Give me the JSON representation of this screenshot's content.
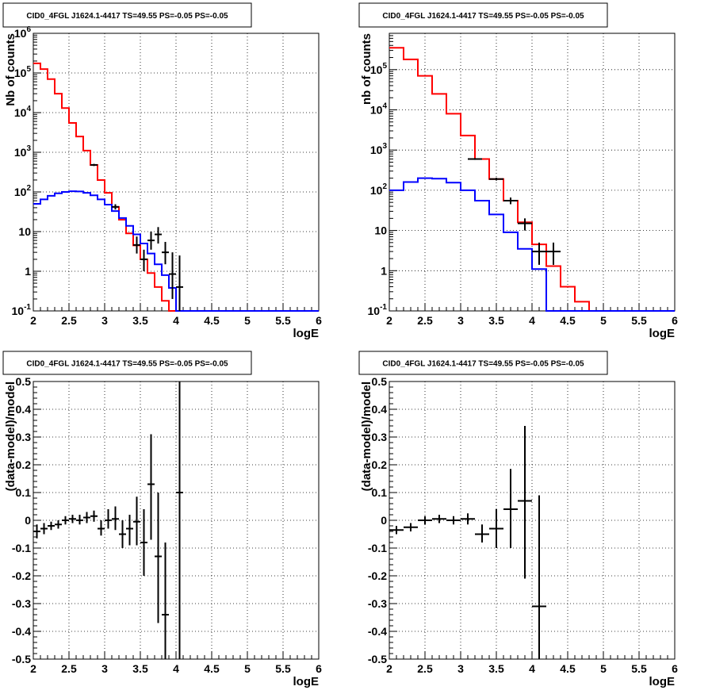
{
  "chart_data": [
    {
      "type": "histogram",
      "title": "CID0_4FGL J1624.1-4417 TS=49.55 PS=-0.05 PS=-0.05",
      "xlabel": "logE",
      "ylabel": "Nb of counts",
      "xlim": [
        2,
        6
      ],
      "ylim": [
        0.1,
        1000000
      ],
      "yscale": "log",
      "grid": true,
      "x_ticks": [
        "2",
        "2.5",
        "3",
        "3.5",
        "4",
        "4.5",
        "5",
        "5.5",
        "6"
      ],
      "y_ticks": [
        "10^-1",
        "1",
        "10",
        "10^2",
        "10^3",
        "10^4",
        "10^5",
        "10^6"
      ],
      "bin_edges": [
        2.0,
        2.1,
        2.2,
        2.3,
        2.4,
        2.5,
        2.6,
        2.7,
        2.8,
        2.9,
        3.0,
        3.1,
        3.2,
        3.3,
        3.4,
        3.5,
        3.6,
        3.7,
        3.8,
        3.9,
        4.0,
        4.1,
        4.2,
        4.3,
        4.4,
        4.5,
        4.6,
        4.7,
        4.8,
        4.9,
        5.0,
        5.1,
        5.2,
        5.3,
        5.4,
        5.5,
        5.6,
        5.7,
        5.8,
        5.9,
        6.0
      ],
      "series": [
        {
          "color": "#ff0000",
          "style": "step",
          "values": [
            175000,
            125000,
            70000,
            30000,
            13000,
            5500,
            2500,
            1100,
            480,
            200,
            95,
            42,
            20,
            9,
            4.5,
            2,
            0.9,
            0.4,
            0.18,
            0.1,
            0.1,
            0.1,
            0.1,
            0.1,
            0.1,
            0.1,
            0.1,
            0.1,
            0.1,
            0.1,
            0.1,
            0.1,
            0.1,
            0.1,
            0.1,
            0.1,
            0.1,
            0.1,
            0.1,
            0.1
          ]
        },
        {
          "color": "#0000ff",
          "style": "step",
          "values": [
            50,
            65,
            80,
            92,
            100,
            104,
            103,
            95,
            82,
            65,
            48,
            33,
            22,
            14,
            8.5,
            5,
            2.8,
            1.5,
            0.8,
            0.38,
            0.1,
            0.1,
            0.1,
            0.1,
            0.1,
            0.1,
            0.1,
            0.1,
            0.1,
            0.1,
            0.1,
            0.1,
            0.1,
            0.1,
            0.1,
            0.1,
            0.1,
            0.1,
            0.1,
            0.1
          ]
        },
        {
          "color": "#000000",
          "style": "errorbar",
          "points": [
            {
              "x": 2.85,
              "y": 480,
              "xerr": 0.05,
              "lo": 450,
              "hi": 510
            },
            {
              "x": 3.15,
              "y": 42,
              "xerr": 0.05,
              "lo": 36,
              "hi": 49
            },
            {
              "x": 3.45,
              "y": 4.6,
              "xerr": 0.05,
              "lo": 2.8,
              "hi": 7.5
            },
            {
              "x": 3.55,
              "y": 2.0,
              "xerr": 0.05,
              "lo": 1.0,
              "hi": 3.5
            },
            {
              "x": 3.65,
              "y": 6.0,
              "xerr": 0.05,
              "lo": 3.5,
              "hi": 10
            },
            {
              "x": 3.75,
              "y": 8.5,
              "xerr": 0.05,
              "lo": 5,
              "hi": 13
            },
            {
              "x": 3.85,
              "y": 3.0,
              "xerr": 0.05,
              "lo": 1.5,
              "hi": 5.5
            },
            {
              "x": 3.95,
              "y": 0.85,
              "xerr": 0.05,
              "lo": 0.2,
              "hi": 3
            },
            {
              "x": 4.05,
              "y": 0.4,
              "xerr": 0.05,
              "lo": 0.1,
              "hi": 2.5
            }
          ]
        }
      ]
    },
    {
      "type": "histogram",
      "title": "CID0_4FGL J1624.1-4417 TS=49.55 PS=-0.05 PS=-0.05",
      "xlabel": "logE",
      "ylabel": "nb of counts",
      "xlim": [
        2,
        6
      ],
      "ylim": [
        0.1,
        800000
      ],
      "yscale": "log",
      "grid": true,
      "x_ticks": [
        "2",
        "2.5",
        "3",
        "3.5",
        "4",
        "4.5",
        "5",
        "5.5",
        "6"
      ],
      "y_ticks": [
        "10^-1",
        "1",
        "10",
        "10^2",
        "10^3",
        "10^4",
        "10^5"
      ],
      "bin_edges": [
        2.0,
        2.2,
        2.4,
        2.6,
        2.8,
        3.0,
        3.2,
        3.4,
        3.6,
        3.8,
        4.0,
        4.2,
        4.4,
        4.6,
        4.8,
        5.0,
        5.2,
        5.4,
        5.6,
        5.8,
        6.0
      ],
      "series": [
        {
          "color": "#ff0000",
          "style": "step",
          "values": [
            350000,
            180000,
            70000,
            25000,
            8000,
            2300,
            600,
            190,
            55,
            16,
            4.5,
            1.3,
            0.4,
            0.17,
            0.1,
            0.1,
            0.1,
            0.1,
            0.1,
            0.1
          ]
        },
        {
          "color": "#0000ff",
          "style": "step",
          "values": [
            100,
            160,
            200,
            195,
            155,
            100,
            55,
            25,
            9,
            3.5,
            1.1,
            0.1,
            0.1,
            0.1,
            0.1,
            0.1,
            0.1,
            0.1,
            0.1,
            0.1
          ]
        },
        {
          "color": "#000000",
          "style": "errorbar",
          "points": [
            {
              "x": 3.2,
              "y": 600,
              "xerr": 0.1,
              "lo": 570,
              "hi": 630
            },
            {
              "x": 3.5,
              "y": 190,
              "xerr": 0.1,
              "lo": 175,
              "hi": 205
            },
            {
              "x": 3.7,
              "y": 55,
              "xerr": 0.1,
              "lo": 45,
              "hi": 66
            },
            {
              "x": 3.9,
              "y": 15,
              "xerr": 0.1,
              "lo": 10,
              "hi": 20
            },
            {
              "x": 4.1,
              "y": 3.0,
              "xerr": 0.1,
              "lo": 1.4,
              "hi": 5
            },
            {
              "x": 4.3,
              "y": 3.0,
              "xerr": 0.1,
              "lo": 1.4,
              "hi": 5
            }
          ]
        }
      ]
    },
    {
      "type": "scatter",
      "title": "CID0_4FGL J1624.1-4417 TS=49.55 PS=-0.05 PS=-0.05",
      "xlabel": "logE",
      "ylabel": "(data-model)/model",
      "xlim": [
        2,
        6
      ],
      "ylim": [
        -0.5,
        0.5
      ],
      "grid": true,
      "x_ticks": [
        "2",
        "2.5",
        "3",
        "3.5",
        "4",
        "4.5",
        "5",
        "5.5",
        "6"
      ],
      "y_ticks": [
        "-0.5",
        "-0.4",
        "-0.3",
        "-0.2",
        "-0.1",
        "0",
        "0.1",
        "0.2",
        "0.3",
        "0.4",
        "0.5"
      ],
      "series": [
        {
          "color": "#000000",
          "style": "errorbar",
          "points": [
            {
              "x": 2.05,
              "y": -0.04,
              "xerr": 0.05,
              "lo": -0.065,
              "hi": -0.015
            },
            {
              "x": 2.15,
              "y": -0.03,
              "xerr": 0.05,
              "lo": -0.05,
              "hi": -0.01
            },
            {
              "x": 2.25,
              "y": -0.02,
              "xerr": 0.05,
              "lo": -0.035,
              "hi": -0.005
            },
            {
              "x": 2.35,
              "y": -0.015,
              "xerr": 0.05,
              "lo": -0.03,
              "hi": 0.0
            },
            {
              "x": 2.45,
              "y": 0.0,
              "xerr": 0.05,
              "lo": -0.015,
              "hi": 0.015
            },
            {
              "x": 2.55,
              "y": 0.005,
              "xerr": 0.05,
              "lo": -0.01,
              "hi": 0.02
            },
            {
              "x": 2.65,
              "y": 0.0,
              "xerr": 0.05,
              "lo": -0.015,
              "hi": 0.02
            },
            {
              "x": 2.75,
              "y": 0.01,
              "xerr": 0.05,
              "lo": -0.01,
              "hi": 0.03
            },
            {
              "x": 2.85,
              "y": 0.015,
              "xerr": 0.05,
              "lo": -0.005,
              "hi": 0.035
            },
            {
              "x": 2.95,
              "y": -0.03,
              "xerr": 0.05,
              "lo": -0.055,
              "hi": 0.0
            },
            {
              "x": 3.05,
              "y": 0.0,
              "xerr": 0.05,
              "lo": -0.03,
              "hi": 0.04
            },
            {
              "x": 3.15,
              "y": 0.005,
              "xerr": 0.05,
              "lo": -0.035,
              "hi": 0.05
            },
            {
              "x": 3.25,
              "y": -0.05,
              "xerr": 0.05,
              "lo": -0.1,
              "hi": 0.0
            },
            {
              "x": 3.35,
              "y": -0.03,
              "xerr": 0.05,
              "lo": -0.09,
              "hi": 0.02
            },
            {
              "x": 3.45,
              "y": -0.005,
              "xerr": 0.05,
              "lo": -0.09,
              "hi": 0.085
            },
            {
              "x": 3.55,
              "y": -0.08,
              "xerr": 0.05,
              "lo": -0.2,
              "hi": 0.04
            },
            {
              "x": 3.65,
              "y": 0.13,
              "xerr": 0.05,
              "lo": -0.07,
              "hi": 0.31
            },
            {
              "x": 3.75,
              "y": -0.13,
              "xerr": 0.05,
              "lo": -0.37,
              "hi": 0.1
            },
            {
              "x": 3.85,
              "y": -0.34,
              "xerr": 0.05,
              "lo": -0.5,
              "hi": -0.08
            },
            {
              "x": 4.05,
              "y": 0.1,
              "xerr": 0.05,
              "lo": -0.5,
              "hi": 0.5
            }
          ]
        }
      ]
    },
    {
      "type": "scatter",
      "title": "CID0_4FGL J1624.1-4417 TS=49.55 PS=-0.05 PS=-0.05",
      "xlabel": "logE",
      "ylabel": "(data-model)/model",
      "xlim": [
        2,
        6
      ],
      "ylim": [
        -0.5,
        0.5
      ],
      "grid": true,
      "x_ticks": [
        "2",
        "2.5",
        "3",
        "3.5",
        "4",
        "4.5",
        "5",
        "5.5",
        "6"
      ],
      "y_ticks": [
        "-0.5",
        "-0.4",
        "-0.3",
        "-0.2",
        "-0.1",
        "0",
        "0.1",
        "0.2",
        "0.3",
        "0.4",
        "0.5"
      ],
      "series": [
        {
          "color": "#000000",
          "style": "errorbar",
          "points": [
            {
              "x": 2.1,
              "y": -0.035,
              "xerr": 0.1,
              "lo": -0.05,
              "hi": -0.02
            },
            {
              "x": 2.3,
              "y": -0.025,
              "xerr": 0.1,
              "lo": -0.04,
              "hi": -0.01
            },
            {
              "x": 2.5,
              "y": 0.0,
              "xerr": 0.1,
              "lo": -0.015,
              "hi": 0.015
            },
            {
              "x": 2.7,
              "y": 0.005,
              "xerr": 0.1,
              "lo": -0.01,
              "hi": 0.02
            },
            {
              "x": 2.9,
              "y": 0.0,
              "xerr": 0.1,
              "lo": -0.015,
              "hi": 0.015
            },
            {
              "x": 3.1,
              "y": 0.005,
              "xerr": 0.1,
              "lo": -0.015,
              "hi": 0.025
            },
            {
              "x": 3.3,
              "y": -0.05,
              "xerr": 0.1,
              "lo": -0.08,
              "hi": -0.015
            },
            {
              "x": 3.5,
              "y": -0.03,
              "xerr": 0.1,
              "lo": -0.1,
              "hi": 0.04
            },
            {
              "x": 3.7,
              "y": 0.04,
              "xerr": 0.1,
              "lo": -0.1,
              "hi": 0.185
            },
            {
              "x": 3.9,
              "y": 0.07,
              "xerr": 0.1,
              "lo": -0.21,
              "hi": 0.34
            },
            {
              "x": 4.1,
              "y": -0.31,
              "xerr": 0.1,
              "lo": -0.5,
              "hi": 0.09
            }
          ]
        }
      ]
    }
  ]
}
